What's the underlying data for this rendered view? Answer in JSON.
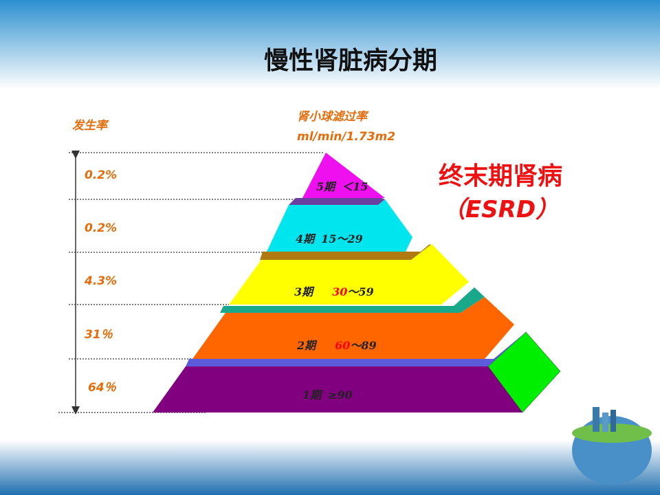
{
  "title": "慢性肾脏病分期",
  "rate_header": "发生率",
  "gfr_header": [
    "肾小球滤过率",
    "ml/min/1.73m2"
  ],
  "rates": [
    "0.2%",
    "0.2%",
    "4.3%",
    "31％",
    "64％"
  ],
  "stages": [
    {
      "name": "5期",
      "range": "＜15"
    },
    {
      "name": "4期",
      "range": "15～29"
    },
    {
      "name": "3期",
      "low": "30",
      "range": "～59"
    },
    {
      "name": "2期",
      "low": "60",
      "range": "～89"
    },
    {
      "name": "1期",
      "range": "≥90"
    }
  ],
  "esrd": [
    "终末期肾病",
    "（ESRD）"
  ]
}
